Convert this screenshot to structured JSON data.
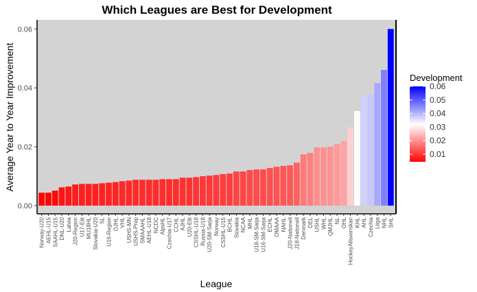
{
  "chart_data": {
    "type": "bar",
    "title": "Which Leagues are Best for Development",
    "xlabel": "League",
    "ylabel": "Average Year to Year Improvement",
    "ylim": [
      0,
      0.06
    ],
    "yticks": [
      "0.00",
      "0.02",
      "0.04",
      "0.06"
    ],
    "ytick_values": [
      0,
      0.02,
      0.04,
      0.06
    ],
    "grid": false,
    "categories": [
      "Norway-U20",
      "AEHL-U15",
      "SAAHL-U15",
      "DNL-U20",
      "Latvia",
      "J20-Region",
      "U17-Elit",
      "MU18HL",
      "Slovakia-U20",
      "SL",
      "U16-Region",
      "OJHL",
      "VHL",
      "USHS-MN",
      "USHS-Prep",
      "SMAAAHL",
      "AEHL-U18",
      "NCDC",
      "AlpsHL",
      "Czechia-U17",
      "CCHL",
      "AJHL",
      "U20-Elit",
      "CSSHL-U18",
      "Russia-U18",
      "U20-SM-Sarja",
      "Norway",
      "CSSHL-U15",
      "BCHL",
      "Slovakia",
      "NCAA",
      "MHL",
      "U18-SM-Sarja",
      "U16-SM-Sarja",
      "ECHL",
      "OMAAA",
      "NAHL",
      "J20-Nationell",
      "J18-Nationell",
      "Denmark",
      "DEL",
      "USHL",
      "WHL",
      "QMJHL",
      "NL",
      "OHL",
      "HockeyAllsvenskan",
      "KHL",
      "AHL",
      "Czechia",
      "Liiga",
      "NHL",
      "SHL"
    ],
    "values": [
      0.0044,
      0.0044,
      0.0051,
      0.0062,
      0.0065,
      0.0072,
      0.0074,
      0.0074,
      0.0074,
      0.0076,
      0.0078,
      0.008,
      0.0083,
      0.0085,
      0.0088,
      0.0088,
      0.0088,
      0.0088,
      0.009,
      0.009,
      0.009,
      0.0095,
      0.0095,
      0.0097,
      0.01,
      0.0102,
      0.0104,
      0.0107,
      0.0109,
      0.0116,
      0.0116,
      0.0121,
      0.0123,
      0.0123,
      0.0128,
      0.0132,
      0.0135,
      0.0137,
      0.0146,
      0.0174,
      0.0179,
      0.0198,
      0.0198,
      0.02,
      0.0209,
      0.0219,
      0.0266,
      0.0321,
      0.0371,
      0.038,
      0.0416,
      0.0461,
      0.06
    ],
    "legend": {
      "title": "Development",
      "position": "right",
      "ticks": [
        "0.06",
        "0.05",
        "0.04",
        "0.03",
        "0.02",
        "0.01"
      ],
      "tick_values": [
        0.06,
        0.05,
        0.04,
        0.03,
        0.02,
        0.01
      ],
      "low_color": "#FF0000",
      "mid_color": "#FFFFFF",
      "high_color": "#0000FF",
      "midpoint": 0.032
    },
    "panel_color": "#D3D3D3"
  }
}
